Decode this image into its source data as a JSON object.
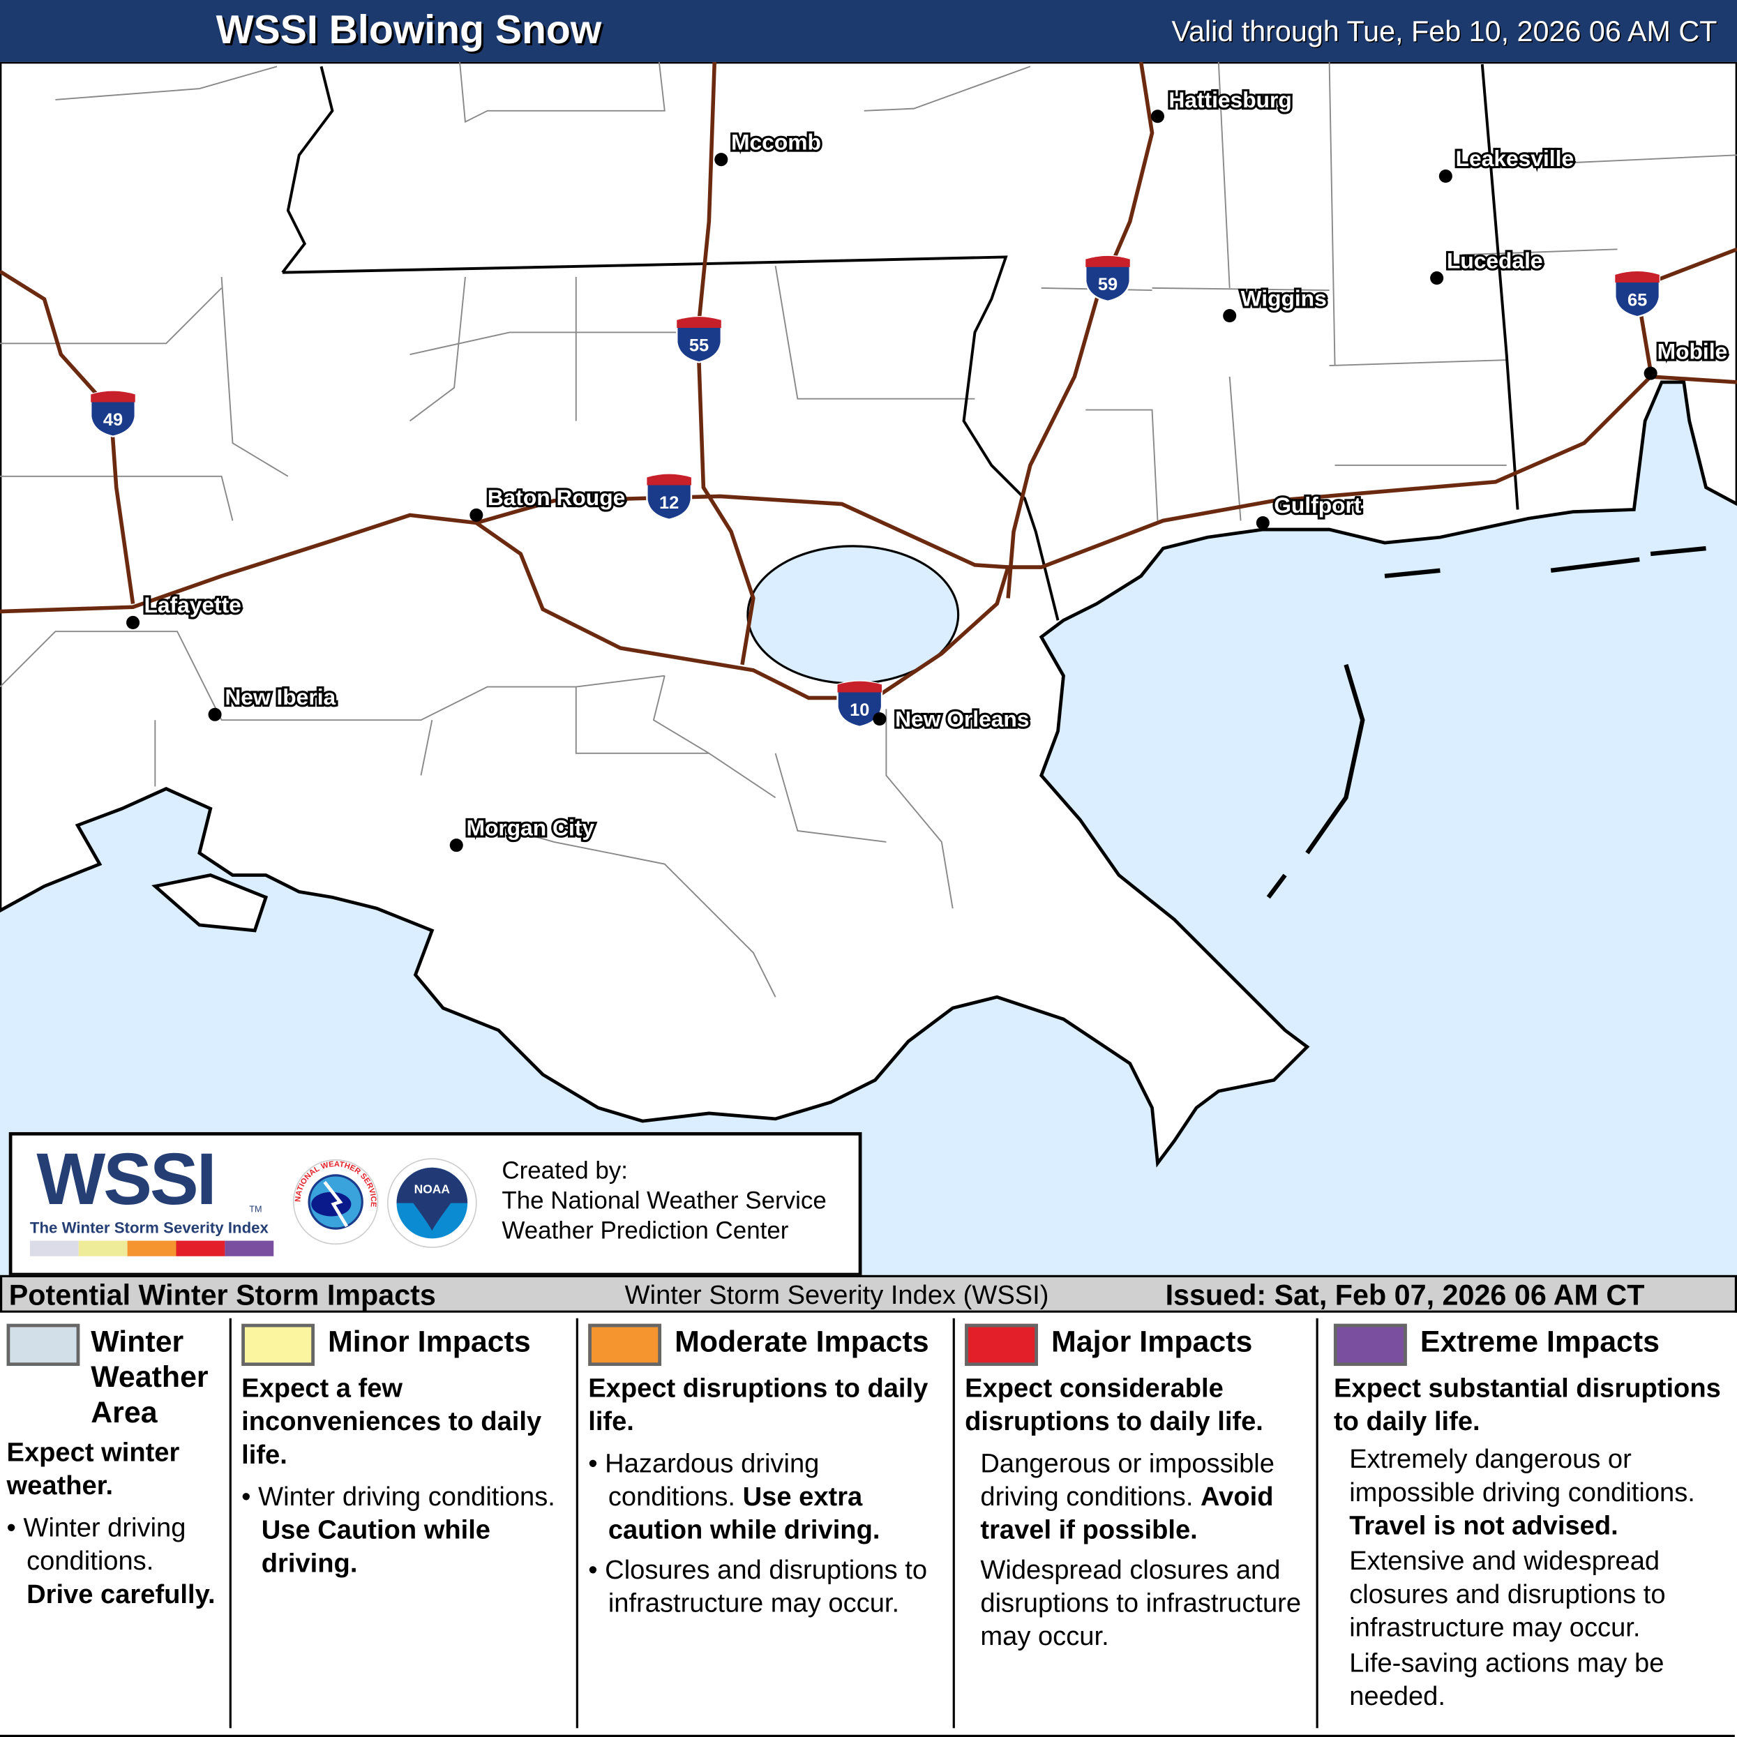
{
  "header": {
    "title": "WSSI Blowing Snow",
    "valid": "Valid through Tue, Feb 10, 2026 06 AM CT"
  },
  "colors": {
    "header": "#1d3a6e",
    "water": "#dbeeff",
    "interstate": "#6b2a0f",
    "winter": "#d3dfe8",
    "minor": "#fbf5a0",
    "moderate": "#f5952f",
    "major": "#e3202a",
    "extreme": "#7b4fa0"
  },
  "cities": [
    {
      "name": "Hattiesburg"
    },
    {
      "name": "Mccomb"
    },
    {
      "name": "Leakesville"
    },
    {
      "name": "Lucedale"
    },
    {
      "name": "Wiggins"
    },
    {
      "name": "Mobile"
    },
    {
      "name": "Baton Rouge"
    },
    {
      "name": "Gulfport"
    },
    {
      "name": "Lafayette"
    },
    {
      "name": "New Iberia"
    },
    {
      "name": "New Orleans"
    },
    {
      "name": "Morgan City"
    }
  ],
  "interstates": [
    "49",
    "55",
    "12",
    "10",
    "59",
    "65"
  ],
  "logo": {
    "wssi": "WSSI",
    "tm": "TM",
    "wssi_sub": "The Winter Storm Severity Index",
    "nws": "NATIONAL WEATHER SERVICE",
    "noaa": "NOAA",
    "created_by": "Created by:",
    "org1": "The National Weather Service",
    "org2": "Weather Prediction Center"
  },
  "legend_bar": {
    "left": "Potential Winter Storm Impacts",
    "center": "Winter Storm Severity Index (WSSI)",
    "issued": "Issued: Sat, Feb 07, 2026 06 AM CT"
  },
  "legend": [
    {
      "title": "Winter Weather Area",
      "summary": "Expect winter weather.",
      "bullet": "Winter driving conditions.",
      "bold": "Drive carefully."
    },
    {
      "title": "Minor Impacts",
      "summary": "Expect a few inconveniences to daily life.",
      "bullet": "Winter driving conditions.",
      "bold": "Use Caution while driving."
    },
    {
      "title": "Moderate Impacts",
      "summary": "Expect disruptions to daily life.",
      "bullet": "Hazardous driving conditions.",
      "bold": "Use extra caution while driving.",
      "bullet2": "Closures and disruptions to infrastructure may occur."
    },
    {
      "title": "Major Impacts",
      "summary": "Expect considerable disruptions to daily life.",
      "text": "Dangerous or impossible driving conditions.",
      "bold": "Avoid travel if possible.",
      "text2": "Widespread closures and disruptions to infrastructure may occur."
    },
    {
      "title": "Extreme Impacts",
      "summary": "Expect substantial disruptions to daily life.",
      "text": "Extremely dangerous or impossible driving conditions.",
      "bold": "Travel is not advised.",
      "text2": "Extensive and widespread closures and disruptions to infrastructure may occur.",
      "text3": "Life-saving actions may be needed."
    }
  ]
}
